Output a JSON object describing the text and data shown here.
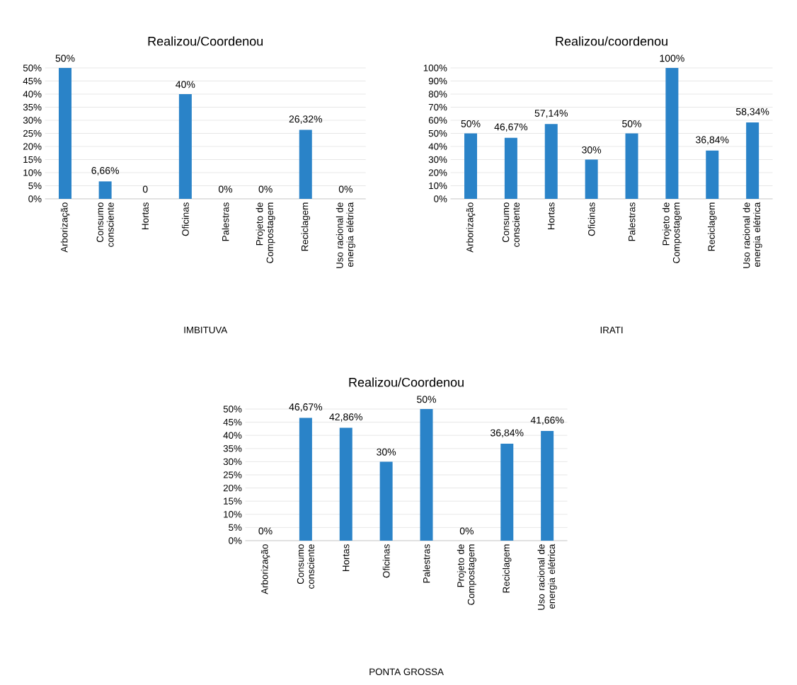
{
  "chart_data": [
    {
      "type": "bar",
      "title": "Realizou/Coordenou",
      "xlabel": "IMBITUVA",
      "color": "#2a83c8",
      "grid": "y",
      "categories": [
        "Arborização",
        "Consumo consciente",
        "Hortas",
        "Oficinas",
        "Palestras",
        "Projeto de Compostagem",
        "Reciclagem",
        "Uso racional de energia elétrica"
      ],
      "values": [
        50,
        6.66,
        0,
        40,
        0,
        0,
        26.32,
        0
      ],
      "value_labels": [
        "50%",
        "6,66%",
        "0",
        "40%",
        "0%",
        "0%",
        "26,32%",
        "0%"
      ],
      "ylim": [
        0,
        50
      ],
      "yticks": [
        {
          "value": 0,
          "label": "0%"
        },
        {
          "value": 5,
          "label": "5%"
        },
        {
          "value": 10,
          "label": "10%"
        },
        {
          "value": 15,
          "label": "15%"
        },
        {
          "value": 20,
          "label": "20%"
        },
        {
          "value": 25,
          "label": "25%"
        },
        {
          "value": 30,
          "label": "30%"
        },
        {
          "value": 35,
          "label": "35%"
        },
        {
          "value": 40,
          "label": "40%"
        },
        {
          "value": 45,
          "label": "45%"
        },
        {
          "value": 50,
          "label": "50%"
        }
      ]
    },
    {
      "type": "bar",
      "title": "Realizou/coordenou",
      "xlabel": "IRATI",
      "color": "#2a83c8",
      "grid": "y",
      "categories": [
        "Arborização",
        "Consumo consciente",
        "Hortas",
        "Oficinas",
        "Palestras",
        "Projeto de Compostagem",
        "Reciclagem",
        "Uso racional de energia elétrica"
      ],
      "values": [
        50,
        46.67,
        57.14,
        30,
        50,
        100,
        36.84,
        58.34
      ],
      "value_labels": [
        "50%",
        "46,67%",
        "57,14%",
        "30%",
        "50%",
        "100%",
        "36,84%",
        "58,34%"
      ],
      "ylim": [
        0,
        100
      ],
      "yticks": [
        {
          "value": 0,
          "label": "0%"
        },
        {
          "value": 10,
          "label": "10%"
        },
        {
          "value": 20,
          "label": "20%"
        },
        {
          "value": 30,
          "label": "30%"
        },
        {
          "value": 40,
          "label": "40%"
        },
        {
          "value": 50,
          "label": "50%"
        },
        {
          "value": 60,
          "label": "60%"
        },
        {
          "value": 70,
          "label": "70%"
        },
        {
          "value": 80,
          "label": "80%"
        },
        {
          "value": 90,
          "label": "90%"
        },
        {
          "value": 100,
          "label": "100%"
        }
      ]
    },
    {
      "type": "bar",
      "title": "Realizou/Coordenou",
      "xlabel": "PONTA GROSSA",
      "color": "#2a83c8",
      "grid": "y",
      "categories": [
        "Arborização",
        "Consumo consciente",
        "Hortas",
        "Oficinas",
        "Palestras",
        "Projeto de Compostagem",
        "Reciclagem",
        "Uso racional de energia elétrica"
      ],
      "values": [
        0,
        46.67,
        42.86,
        30,
        50,
        0,
        36.84,
        41.66
      ],
      "value_labels": [
        "0%",
        "46,67%",
        "42,86%",
        "30%",
        "50%",
        "0%",
        "36,84%",
        "41,66%"
      ],
      "ylim": [
        0,
        50
      ],
      "yticks": [
        {
          "value": 0,
          "label": "0%"
        },
        {
          "value": 5,
          "label": "5%"
        },
        {
          "value": 10,
          "label": "10%"
        },
        {
          "value": 15,
          "label": "15%"
        },
        {
          "value": 20,
          "label": "20%"
        },
        {
          "value": 25,
          "label": "25%"
        },
        {
          "value": 30,
          "label": "30%"
        },
        {
          "value": 35,
          "label": "35%"
        },
        {
          "value": 40,
          "label": "40%"
        },
        {
          "value": 45,
          "label": "45%"
        },
        {
          "value": 50,
          "label": "50%"
        }
      ]
    }
  ]
}
